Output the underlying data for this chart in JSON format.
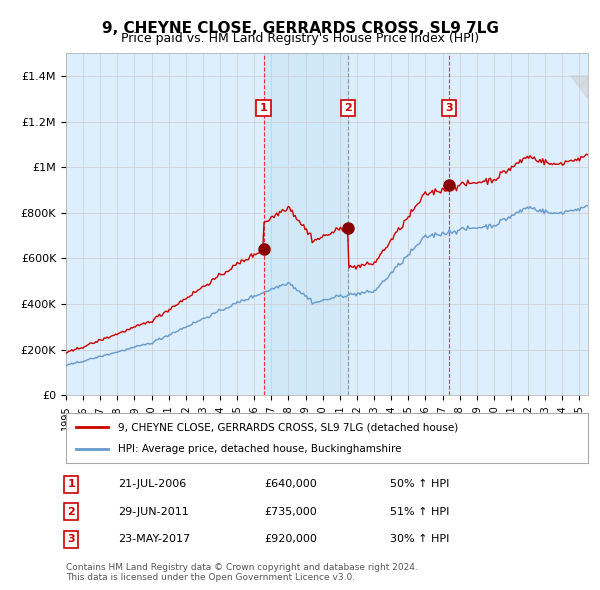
{
  "title": "9, CHEYNE CLOSE, GERRARDS CROSS, SL9 7LG",
  "subtitle": "Price paid vs. HM Land Registry's House Price Index (HPI)",
  "legend_line1": "9, CHEYNE CLOSE, GERRARDS CROSS, SL9 7LG (detached house)",
  "legend_line2": "HPI: Average price, detached house, Buckinghamshire",
  "footer_line1": "Contains HM Land Registry data © Crown copyright and database right 2024.",
  "footer_line2": "This data is licensed under the Open Government Licence v3.0.",
  "transactions": [
    {
      "num": 1,
      "date": "21-JUL-2006",
      "price": 640000,
      "hpi_pct": "50% ↑ HPI"
    },
    {
      "num": 2,
      "date": "29-JUN-2011",
      "price": 735000,
      "hpi_pct": "51% ↑ HPI"
    },
    {
      "num": 3,
      "date": "23-MAY-2017",
      "price": 920000,
      "hpi_pct": "30% ↑ HPI"
    }
  ],
  "transaction_dates_decimal": [
    2006.55,
    2011.49,
    2017.39
  ],
  "sale_color": "#cc0000",
  "hpi_color": "#6699cc",
  "background_color": "#ddeeff",
  "plot_bg": "#ffffff",
  "ylim": [
    0,
    1500000
  ],
  "yticks": [
    0,
    200000,
    400000,
    600000,
    800000,
    1000000,
    1200000,
    1400000
  ],
  "xlim_start": 1995.0,
  "xlim_end": 2025.5
}
